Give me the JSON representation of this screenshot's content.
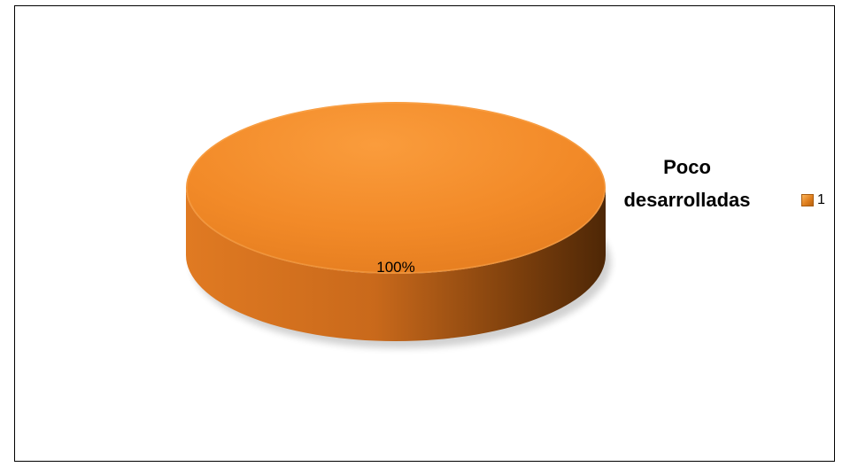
{
  "chart_data": {
    "type": "pie",
    "title": "Poco desarrolladas",
    "title_lines": [
      "Poco",
      "desarrolladas"
    ],
    "categories": [
      "1"
    ],
    "values": [
      1
    ],
    "data_labels": [
      "100%"
    ],
    "legend": {
      "placement": "right",
      "entries": [
        "1"
      ]
    },
    "style": "3d"
  },
  "colors": {
    "slice_top": "#f28a28",
    "slice_top_light": "#f99a3a",
    "side_light": "#d26f1f",
    "side_dark": "#5a2e07",
    "border": "#000000"
  }
}
